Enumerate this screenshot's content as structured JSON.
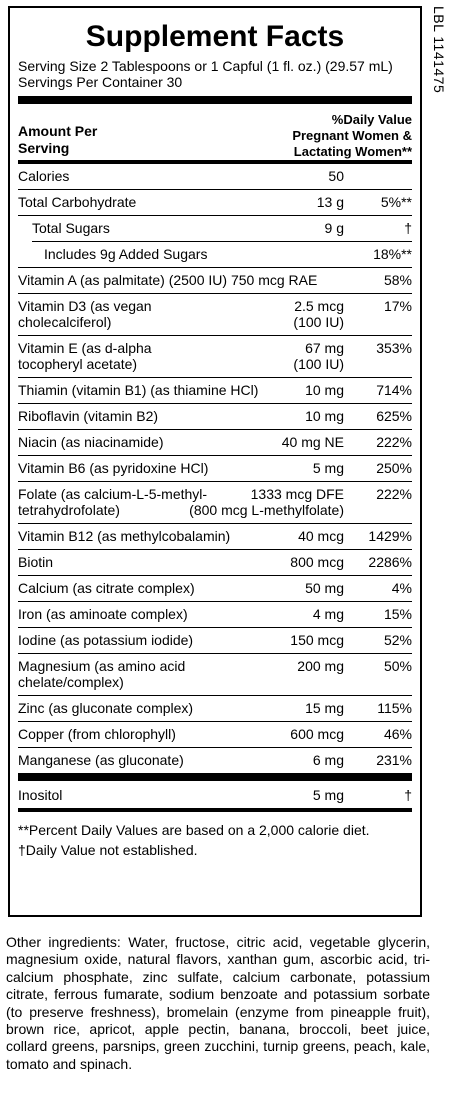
{
  "title": "Supplement Facts",
  "serving_size": "Serving Size 2 Tablespoons or 1 Capful (1 fl. oz.) (29.57 mL)",
  "servings_per_container": "Servings Per Container 30",
  "header": {
    "amount_per_serving_line1": "Amount Per",
    "amount_per_serving_line2": "Serving",
    "dv_line1": "%Daily Value",
    "dv_line2": "Pregnant Women &",
    "dv_line3": "Lactating Women**"
  },
  "rows": [
    {
      "name": "Calories",
      "amount": "50",
      "dv": ""
    },
    {
      "name": "Total Carbohydrate",
      "amount": "13 g",
      "dv": "5%**"
    },
    {
      "name": "Total Sugars",
      "amount": "9 g",
      "dv": "†"
    },
    {
      "name": "Includes 9g Added Sugars",
      "amount": "",
      "dv": "18%**"
    },
    {
      "name": "Vitamin A (as palmitate) (2500 IU) 750 mcg RAE",
      "amount": "",
      "dv": "58%"
    },
    {
      "name_line1": "Vitamin D3 (as vegan",
      "name_line2": "cholecalciferol)",
      "amount_line1": "2.5 mcg",
      "amount_line2": "(100 IU)",
      "dv": "17%"
    },
    {
      "name_line1": "Vitamin E (as d-alpha",
      "name_line2": "tocopheryl acetate)",
      "amount_line1": "67 mg",
      "amount_line2": "(100 IU)",
      "dv": "353%"
    },
    {
      "name": "Thiamin (vitamin B1) (as thiamine HCl)",
      "amount": "10 mg",
      "dv": "714%"
    },
    {
      "name": "Riboflavin (vitamin B2)",
      "amount": "10 mg",
      "dv": "625%"
    },
    {
      "name": "Niacin (as niacinamide)",
      "amount": "40 mg NE",
      "dv": "222%"
    },
    {
      "name": "Vitamin B6 (as pyridoxine HCl)",
      "amount": "5 mg",
      "dv": "250%"
    },
    {
      "name_line1": "Folate (as calcium-L-5-methyl-",
      "name_line2": "tetrahydrofolate)",
      "amount_line1": "1333 mcg DFE",
      "amount_line2": "(800 mcg L-methylfolate)",
      "dv": "222%"
    },
    {
      "name": "Vitamin B12 (as methylcobalamin)",
      "amount": "40 mcg",
      "dv": "1429%"
    },
    {
      "name": "Biotin",
      "amount": "800 mcg",
      "dv": "2286%"
    },
    {
      "name": "Calcium (as citrate complex)",
      "amount": "50 mg",
      "dv": "4%"
    },
    {
      "name": "Iron (as aminoate complex)",
      "amount": "4 mg",
      "dv": "15%"
    },
    {
      "name": "Iodine (as potassium iodide)",
      "amount": "150 mcg",
      "dv": "52%"
    },
    {
      "name_line1": "Magnesium (as amino acid",
      "name_line2": "chelate/complex)",
      "amount": "200 mg",
      "dv": "50%"
    },
    {
      "name": "Zinc (as gluconate complex)",
      "amount": "15 mg",
      "dv": "115%"
    },
    {
      "name": "Copper (from chlorophyll)",
      "amount": "600 mcg",
      "dv": "46%"
    },
    {
      "name": "Manganese (as gluconate)",
      "amount": "6 mg",
      "dv": "231%"
    },
    {
      "name": "Inositol",
      "amount": "5 mg",
      "dv": "†"
    }
  ],
  "footnote1": "**Percent Daily Values are based on a 2,000 calorie diet.",
  "footnote2": "†Daily Value not established.",
  "lbl_code": "LBL 1141475",
  "other_ingredients": "Other ingredients: Water, fructose, citric acid, vegetable glycerin, magnesium oxide, natural flavors, xanthan gum, ascorbic acid, tri-calcium phosphate, zinc sulfate, calcium carbonate, potassium citrate, ferrous fumarate, sodium benzoate and potassium sorbate (to preserve freshness), bromelain (enzyme from pineapple fruit), brown rice, apricot, apple pectin, banana, broccoli, beet juice, collard greens, parsnips, green zucchini, turnip greens, peach, kale, tomato and spinach."
}
